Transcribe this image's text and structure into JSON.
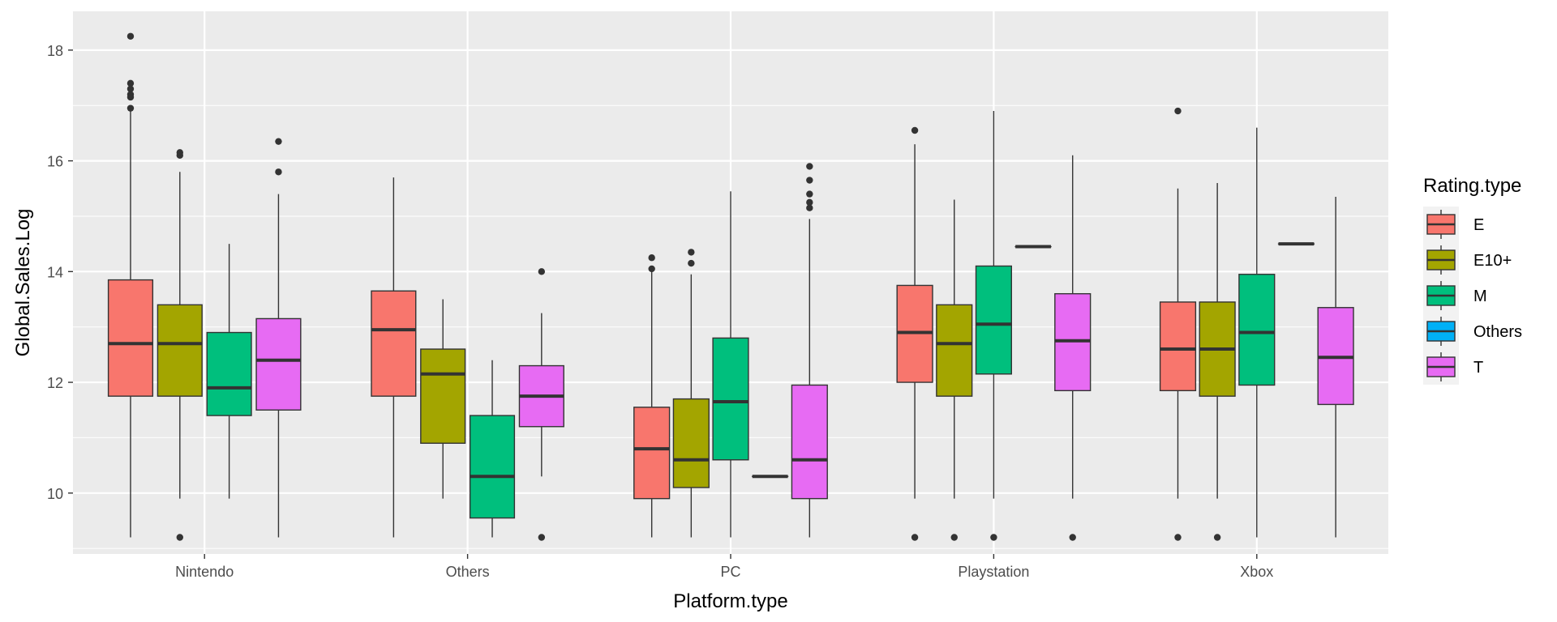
{
  "chart_data": {
    "type": "boxplot",
    "title": "",
    "xlabel": "Platform.type",
    "ylabel": "Global.Sales.Log",
    "ylim": [
      8.9,
      18.7
    ],
    "yticks": [
      10,
      12,
      14,
      16,
      18
    ],
    "grid": true,
    "legend_position": "right",
    "legend_title": "Rating.type",
    "categories": [
      "Nintendo",
      "Others",
      "PC",
      "Playstation",
      "Xbox"
    ],
    "groups": [
      {
        "name": "E",
        "color": "#F8766D"
      },
      {
        "name": "E10+",
        "color": "#A3A500"
      },
      {
        "name": "M",
        "color": "#00BF7D"
      },
      {
        "name": "Others",
        "color": "#00B0F6"
      },
      {
        "name": "T",
        "color": "#E76BF3"
      }
    ],
    "boxes": [
      {
        "category": "Nintendo",
        "group": "E",
        "slot": 0,
        "slots": 4,
        "lower_whisker": 9.2,
        "q1": 11.75,
        "median": 12.7,
        "q3": 13.85,
        "upper_whisker": 16.9,
        "outliers": [
          18.25,
          17.4,
          17.3,
          17.2,
          17.15,
          16.95
        ]
      },
      {
        "category": "Nintendo",
        "group": "E10+",
        "slot": 1,
        "slots": 4,
        "lower_whisker": 9.9,
        "q1": 11.75,
        "median": 12.7,
        "q3": 13.4,
        "upper_whisker": 15.8,
        "outliers": [
          16.1,
          16.15,
          9.2
        ]
      },
      {
        "category": "Nintendo",
        "group": "M",
        "slot": 2,
        "slots": 4,
        "lower_whisker": 9.9,
        "q1": 11.4,
        "median": 11.9,
        "q3": 12.9,
        "upper_whisker": 14.5,
        "outliers": []
      },
      {
        "category": "Nintendo",
        "group": "T",
        "slot": 3,
        "slots": 4,
        "lower_whisker": 9.2,
        "q1": 11.5,
        "median": 12.4,
        "q3": 13.15,
        "upper_whisker": 15.4,
        "outliers": [
          15.8,
          16.35
        ]
      },
      {
        "category": "Others",
        "group": "E",
        "slot": 0,
        "slots": 4,
        "lower_whisker": 9.2,
        "q1": 11.75,
        "median": 12.95,
        "q3": 13.65,
        "upper_whisker": 15.7,
        "outliers": []
      },
      {
        "category": "Others",
        "group": "E10+",
        "slot": 1,
        "slots": 4,
        "lower_whisker": 9.9,
        "q1": 10.9,
        "median": 12.15,
        "q3": 12.6,
        "upper_whisker": 13.5,
        "outliers": []
      },
      {
        "category": "Others",
        "group": "M",
        "slot": 2,
        "slots": 4,
        "lower_whisker": 9.2,
        "q1": 9.55,
        "median": 10.3,
        "q3": 11.4,
        "upper_whisker": 12.4,
        "outliers": []
      },
      {
        "category": "Others",
        "group": "T",
        "slot": 3,
        "slots": 4,
        "lower_whisker": 10.3,
        "q1": 11.2,
        "median": 11.75,
        "q3": 12.3,
        "upper_whisker": 13.25,
        "outliers": [
          14.0,
          9.2
        ]
      },
      {
        "category": "PC",
        "group": "E",
        "slot": 0,
        "slots": 5,
        "lower_whisker": 9.2,
        "q1": 9.9,
        "median": 10.8,
        "q3": 11.55,
        "upper_whisker": 14.0,
        "outliers": [
          14.05,
          14.25
        ]
      },
      {
        "category": "PC",
        "group": "E10+",
        "slot": 1,
        "slots": 5,
        "lower_whisker": 9.2,
        "q1": 10.1,
        "median": 10.6,
        "q3": 11.7,
        "upper_whisker": 13.95,
        "outliers": [
          14.15,
          14.35
        ]
      },
      {
        "category": "PC",
        "group": "M",
        "slot": 2,
        "slots": 5,
        "lower_whisker": 9.2,
        "q1": 10.6,
        "median": 11.65,
        "q3": 12.8,
        "upper_whisker": 15.45,
        "outliers": []
      },
      {
        "category": "PC",
        "group": "Others",
        "slot": 3,
        "slots": 5,
        "lower_whisker": 10.3,
        "q1": 10.3,
        "median": 10.3,
        "q3": 10.3,
        "upper_whisker": 10.3,
        "outliers": []
      },
      {
        "category": "PC",
        "group": "T",
        "slot": 4,
        "slots": 5,
        "lower_whisker": 9.2,
        "q1": 9.9,
        "median": 10.6,
        "q3": 11.95,
        "upper_whisker": 14.95,
        "outliers": [
          15.15,
          15.25,
          15.4,
          15.65,
          15.9
        ]
      },
      {
        "category": "Playstation",
        "group": "E",
        "slot": 0,
        "slots": 5,
        "lower_whisker": 9.9,
        "q1": 12.0,
        "median": 12.9,
        "q3": 13.75,
        "upper_whisker": 16.3,
        "outliers": [
          16.55,
          9.2
        ]
      },
      {
        "category": "Playstation",
        "group": "E10+",
        "slot": 1,
        "slots": 5,
        "lower_whisker": 9.9,
        "q1": 11.75,
        "median": 12.7,
        "q3": 13.4,
        "upper_whisker": 15.3,
        "outliers": [
          9.2
        ]
      },
      {
        "category": "Playstation",
        "group": "M",
        "slot": 2,
        "slots": 5,
        "lower_whisker": 9.9,
        "q1": 12.15,
        "median": 13.05,
        "q3": 14.1,
        "upper_whisker": 16.9,
        "outliers": [
          9.2
        ]
      },
      {
        "category": "Playstation",
        "group": "Others",
        "slot": 3,
        "slots": 5,
        "lower_whisker": 14.45,
        "q1": 14.45,
        "median": 14.45,
        "q3": 14.45,
        "upper_whisker": 14.45,
        "outliers": []
      },
      {
        "category": "Playstation",
        "group": "T",
        "slot": 4,
        "slots": 5,
        "lower_whisker": 9.9,
        "q1": 11.85,
        "median": 12.75,
        "q3": 13.6,
        "upper_whisker": 16.1,
        "outliers": [
          9.2
        ]
      },
      {
        "category": "Xbox",
        "group": "E",
        "slot": 0,
        "slots": 5,
        "lower_whisker": 9.9,
        "q1": 11.85,
        "median": 12.6,
        "q3": 13.45,
        "upper_whisker": 15.5,
        "outliers": [
          16.9,
          9.2
        ]
      },
      {
        "category": "Xbox",
        "group": "E10+",
        "slot": 1,
        "slots": 5,
        "lower_whisker": 9.9,
        "q1": 11.75,
        "median": 12.6,
        "q3": 13.45,
        "upper_whisker": 15.6,
        "outliers": [
          9.2
        ]
      },
      {
        "category": "Xbox",
        "group": "M",
        "slot": 2,
        "slots": 5,
        "lower_whisker": 9.2,
        "q1": 11.95,
        "median": 12.9,
        "q3": 13.95,
        "upper_whisker": 16.6,
        "outliers": []
      },
      {
        "category": "Xbox",
        "group": "Others",
        "slot": 3,
        "slots": 5,
        "lower_whisker": 14.5,
        "q1": 14.5,
        "median": 14.5,
        "q3": 14.5,
        "upper_whisker": 14.5,
        "outliers": []
      },
      {
        "category": "Xbox",
        "group": "T",
        "slot": 4,
        "slots": 5,
        "lower_whisker": 9.2,
        "q1": 11.6,
        "median": 12.45,
        "q3": 13.35,
        "upper_whisker": 15.35,
        "outliers": []
      }
    ],
    "colors": {
      "panel_background": "#EBEBEB",
      "grid_major": "#FFFFFF",
      "box_outline": "#333333"
    }
  }
}
